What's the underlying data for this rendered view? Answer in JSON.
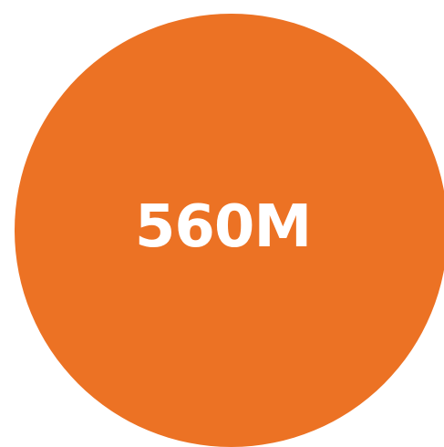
{
  "stat": {
    "value": "560M",
    "circle_color": "#EC7224",
    "text_color": "#FFFFFF"
  }
}
